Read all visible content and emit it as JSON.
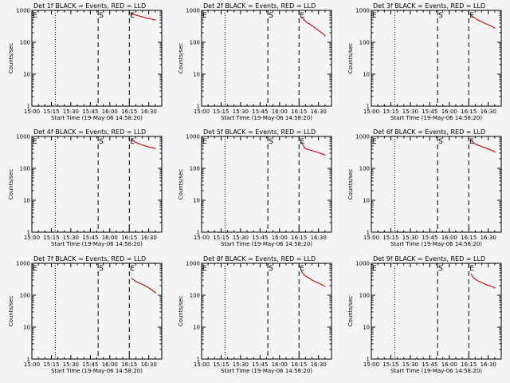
{
  "figure": {
    "background": "#f5f5f5",
    "colors": {
      "events": "#000000",
      "lld": "#cc0000",
      "axes": "#000000"
    }
  },
  "chart_data": [
    {
      "type": "line",
      "title": "Det 1f BLACK = Events, RED = LLD",
      "xlabel": "Start Time (19-May-06 14:58:20)",
      "ylabel": "Counts/sec",
      "xlim": [
        "15:00",
        "16:40"
      ],
      "x_ticks": [
        "15:00",
        "15:15",
        "15:30",
        "15:45",
        "16:00",
        "16:15",
        "16:30"
      ],
      "ylim": [
        1,
        1000
      ],
      "yscale": "log",
      "y_ticks": [
        "1",
        "10",
        "100",
        "1000"
      ],
      "grid": false,
      "markers": [
        {
          "label": "E",
          "time": "15:00",
          "style": "none"
        },
        {
          "label": "",
          "time": "15:18",
          "style": "dotted"
        },
        {
          "label": "S",
          "time": "15:51",
          "style": "dashed"
        },
        {
          "label": "E",
          "time": "16:15",
          "style": "dashed"
        }
      ],
      "series": [
        {
          "color": "#cc0000",
          "x": [
            "16:17",
            "16:19",
            "16:21",
            "16:23",
            "16:25",
            "16:27",
            "16:29",
            "16:31",
            "16:33",
            "16:35"
          ],
          "values": [
            800,
            730,
            700,
            660,
            630,
            600,
            570,
            550,
            520,
            500
          ]
        }
      ]
    },
    {
      "type": "line",
      "title": "Det 2f BLACK = Events, RED = LLD",
      "xlabel": "Start Time (19-May-06 14:58:20)",
      "ylabel": "Counts/sec",
      "xlim": [
        "15:00",
        "16:40"
      ],
      "x_ticks": [
        "15:00",
        "15:15",
        "15:30",
        "15:45",
        "16:00",
        "16:15",
        "16:30"
      ],
      "ylim": [
        1,
        1000
      ],
      "yscale": "log",
      "y_ticks": [
        "1",
        "10",
        "100",
        "1000"
      ],
      "grid": false,
      "markers": [
        {
          "label": "E",
          "time": "15:00",
          "style": "none"
        },
        {
          "label": "",
          "time": "15:18",
          "style": "dotted"
        },
        {
          "label": "S",
          "time": "15:51",
          "style": "dashed"
        },
        {
          "label": "E",
          "time": "16:15",
          "style": "dashed"
        }
      ],
      "series": [
        {
          "color": "#cc0000",
          "x": [
            "16:17",
            "16:19",
            "16:21",
            "16:23",
            "16:25",
            "16:27",
            "16:29",
            "16:31",
            "16:33",
            "16:35"
          ],
          "values": [
            600,
            500,
            420,
            380,
            330,
            290,
            250,
            220,
            190,
            160
          ]
        }
      ]
    },
    {
      "type": "line",
      "title": "Det 3f BLACK = Events, RED = LLD",
      "xlabel": "Start Time (19-May-06 14:58:20)",
      "ylabel": "Counts/sec",
      "xlim": [
        "15:00",
        "16:40"
      ],
      "x_ticks": [
        "15:00",
        "15:15",
        "15:30",
        "15:45",
        "16:00",
        "16:15",
        "16:30"
      ],
      "ylim": [
        1,
        1000
      ],
      "yscale": "log",
      "y_ticks": [
        "1",
        "10",
        "100",
        "1000"
      ],
      "grid": false,
      "markers": [
        {
          "label": "E",
          "time": "15:00",
          "style": "none"
        },
        {
          "label": "",
          "time": "15:18",
          "style": "dotted"
        },
        {
          "label": "S",
          "time": "15:51",
          "style": "dashed"
        },
        {
          "label": "E",
          "time": "16:15",
          "style": "dashed"
        }
      ],
      "series": [
        {
          "color": "#cc0000",
          "x": [
            "16:17",
            "16:19",
            "16:21",
            "16:23",
            "16:25",
            "16:27",
            "16:29",
            "16:31",
            "16:33",
            "16:35"
          ],
          "values": [
            700,
            600,
            530,
            480,
            440,
            400,
            370,
            340,
            310,
            280
          ]
        }
      ]
    },
    {
      "type": "line",
      "title": "Det 4f BLACK = Events, RED = LLD",
      "xlabel": "Start Time (19-May-06 14:58:20)",
      "ylabel": "Counts/sec",
      "xlim": [
        "15:00",
        "16:40"
      ],
      "x_ticks": [
        "15:00",
        "15:15",
        "15:30",
        "15:45",
        "16:00",
        "16:15",
        "16:30"
      ],
      "ylim": [
        1,
        1000
      ],
      "yscale": "log",
      "y_ticks": [
        "1",
        "10",
        "100",
        "1000"
      ],
      "grid": false,
      "markers": [
        {
          "label": "E",
          "time": "15:00",
          "style": "none"
        },
        {
          "label": "",
          "time": "15:18",
          "style": "dotted"
        },
        {
          "label": "S",
          "time": "15:51",
          "style": "dashed"
        },
        {
          "label": "E",
          "time": "16:15",
          "style": "dashed"
        }
      ],
      "series": [
        {
          "color": "#cc0000",
          "x": [
            "16:17",
            "16:19",
            "16:21",
            "16:23",
            "16:25",
            "16:27",
            "16:29",
            "16:31",
            "16:33",
            "16:35"
          ],
          "values": [
            800,
            680,
            620,
            580,
            540,
            510,
            480,
            460,
            440,
            420
          ]
        }
      ]
    },
    {
      "type": "line",
      "title": "Det 5f BLACK = Events, RED = LLD",
      "xlabel": "Start Time (19-May-06 14:58:20)",
      "ylabel": "Counts/sec",
      "xlim": [
        "15:00",
        "16:40"
      ],
      "x_ticks": [
        "15:00",
        "15:15",
        "15:30",
        "15:45",
        "16:00",
        "16:15",
        "16:30"
      ],
      "ylim": [
        1,
        1000
      ],
      "yscale": "log",
      "y_ticks": [
        "1",
        "10",
        "100",
        "1000"
      ],
      "grid": false,
      "markers": [
        {
          "label": "E",
          "time": "15:00",
          "style": "none"
        },
        {
          "label": "",
          "time": "15:18",
          "style": "dotted"
        },
        {
          "label": "S",
          "time": "15:51",
          "style": "dashed"
        },
        {
          "label": "E",
          "time": "16:15",
          "style": "dashed"
        }
      ],
      "series": [
        {
          "color": "#cc0000",
          "x": [
            "16:17",
            "16:19",
            "16:21",
            "16:23",
            "16:25",
            "16:27",
            "16:29",
            "16:31",
            "16:33",
            "16:35"
          ],
          "values": [
            650,
            450,
            400,
            380,
            360,
            340,
            320,
            300,
            280,
            260
          ]
        }
      ]
    },
    {
      "type": "line",
      "title": "Det 6f BLACK = Events, RED = LLD",
      "xlabel": "Start Time (19-May-06 14:58:20)",
      "ylabel": "Counts/sec",
      "xlim": [
        "15:00",
        "16:40"
      ],
      "x_ticks": [
        "15:00",
        "15:15",
        "15:30",
        "15:45",
        "16:00",
        "16:15",
        "16:30"
      ],
      "ylim": [
        1,
        1000
      ],
      "yscale": "log",
      "y_ticks": [
        "1",
        "10",
        "100",
        "1000"
      ],
      "grid": false,
      "markers": [
        {
          "label": "E",
          "time": "15:00",
          "style": "none"
        },
        {
          "label": "",
          "time": "15:18",
          "style": "dotted"
        },
        {
          "label": "S",
          "time": "15:51",
          "style": "dashed"
        },
        {
          "label": "E",
          "time": "16:15",
          "style": "dashed"
        }
      ],
      "series": [
        {
          "color": "#cc0000",
          "x": [
            "16:17",
            "16:19",
            "16:21",
            "16:23",
            "16:25",
            "16:27",
            "16:29",
            "16:31",
            "16:33",
            "16:35"
          ],
          "values": [
            750,
            620,
            560,
            520,
            480,
            450,
            420,
            390,
            360,
            330
          ]
        }
      ]
    },
    {
      "type": "line",
      "title": "Det 7f BLACK = Events, RED = LLD",
      "xlabel": "Start Time (19-May-06 14:58:20)",
      "ylabel": "Counts/sec",
      "xlim": [
        "15:00",
        "16:40"
      ],
      "x_ticks": [
        "15:00",
        "15:15",
        "15:30",
        "15:45",
        "16:00",
        "16:15",
        "16:30"
      ],
      "ylim": [
        1,
        1000
      ],
      "yscale": "log",
      "y_ticks": [
        "1",
        "10",
        "100",
        "1000"
      ],
      "grid": false,
      "markers": [
        {
          "label": "E",
          "time": "15:00",
          "style": "none"
        },
        {
          "label": "",
          "time": "15:18",
          "style": "dotted"
        },
        {
          "label": "S",
          "time": "15:51",
          "style": "dashed"
        },
        {
          "label": "E",
          "time": "16:15",
          "style": "dashed"
        }
      ],
      "series": [
        {
          "color": "#cc0000",
          "x": [
            "16:17",
            "16:19",
            "16:21",
            "16:23",
            "16:25",
            "16:27",
            "16:29",
            "16:31",
            "16:33",
            "16:35"
          ],
          "values": [
            330,
            290,
            260,
            240,
            220,
            200,
            180,
            160,
            140,
            120
          ]
        }
      ]
    },
    {
      "type": "line",
      "title": "Det 8f BLACK = Events, RED = LLD",
      "xlabel": "Start Time (19-May-06 14:58:20)",
      "ylabel": "Counts/sec",
      "xlim": [
        "15:00",
        "16:40"
      ],
      "x_ticks": [
        "15:00",
        "15:15",
        "15:30",
        "15:45",
        "16:00",
        "16:15",
        "16:30"
      ],
      "ylim": [
        1,
        1000
      ],
      "yscale": "log",
      "y_ticks": [
        "1",
        "10",
        "100",
        "1000"
      ],
      "grid": false,
      "markers": [
        {
          "label": "E",
          "time": "15:00",
          "style": "none"
        },
        {
          "label": "",
          "time": "15:18",
          "style": "dotted"
        },
        {
          "label": "S",
          "time": "15:51",
          "style": "dashed"
        },
        {
          "label": "E",
          "time": "16:15",
          "style": "dashed"
        }
      ],
      "series": [
        {
          "color": "#cc0000",
          "x": [
            "16:17",
            "16:19",
            "16:21",
            "16:23",
            "16:25",
            "16:27",
            "16:29",
            "16:31",
            "16:33",
            "16:35"
          ],
          "values": [
            550,
            430,
            380,
            340,
            300,
            270,
            250,
            230,
            210,
            190
          ]
        }
      ]
    },
    {
      "type": "line",
      "title": "Det 9f BLACK = Events, RED = LLD",
      "xlabel": "Start Time (19-May-06 14:58:20)",
      "ylabel": "Counts/sec",
      "xlim": [
        "15:00",
        "16:40"
      ],
      "x_ticks": [
        "15:00",
        "15:15",
        "15:30",
        "15:45",
        "16:00",
        "16:15",
        "16:30"
      ],
      "ylim": [
        1,
        1000
      ],
      "yscale": "log",
      "y_ticks": [
        "1",
        "10",
        "100",
        "1000"
      ],
      "grid": false,
      "markers": [
        {
          "label": "E",
          "time": "15:00",
          "style": "none"
        },
        {
          "label": "",
          "time": "15:18",
          "style": "dotted"
        },
        {
          "label": "S",
          "time": "15:51",
          "style": "dashed"
        },
        {
          "label": "E",
          "time": "16:15",
          "style": "dashed"
        }
      ],
      "series": [
        {
          "color": "#cc0000",
          "x": [
            "16:17",
            "16:19",
            "16:21",
            "16:23",
            "16:25",
            "16:27",
            "16:29",
            "16:31",
            "16:33",
            "16:35"
          ],
          "values": [
            450,
            340,
            300,
            270,
            250,
            230,
            210,
            200,
            185,
            170
          ]
        }
      ]
    }
  ]
}
